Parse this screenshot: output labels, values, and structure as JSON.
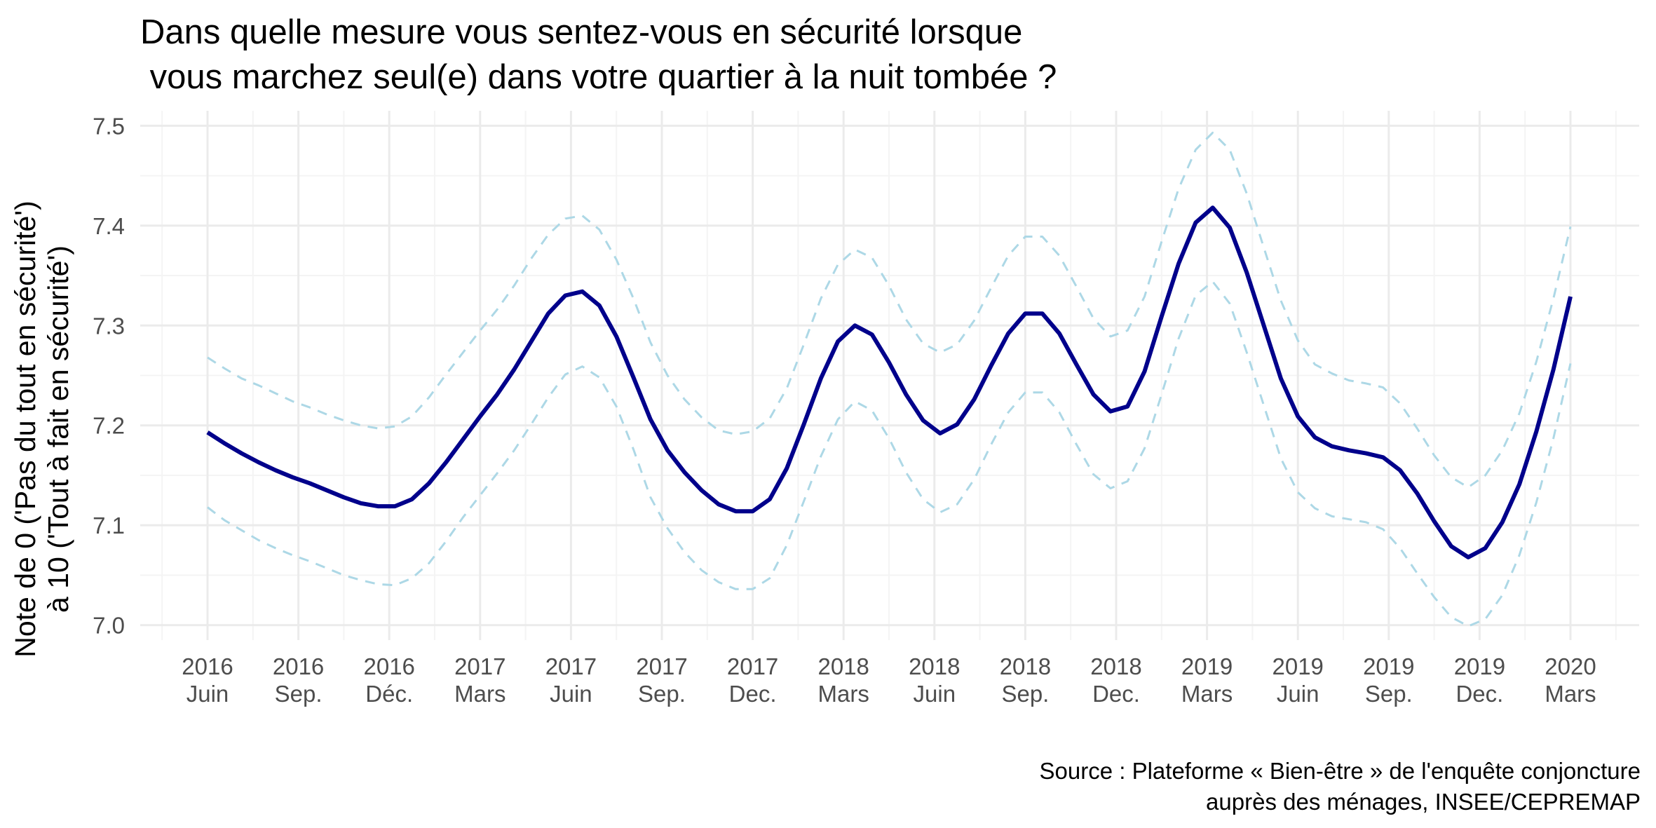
{
  "chart_data": {
    "type": "line",
    "title": "Dans quelle mesure vous sentez-vous en sécurité lorsque\n vous marchez seul(e) dans votre quartier à la nuit tombée ?",
    "ylabel": "Note de 0 ('Pas du tout en sécurité')\nà 10 ('Tout à fait en sécurité')",
    "xlabel": "",
    "caption": "Source : Plateforme « Bien-être » de l'enquête conjoncture\nauprès des ménages, INSEE/CEPREMAP",
    "ylim": [
      6.985,
      7.515
    ],
    "yticks": [
      7.0,
      7.1,
      7.2,
      7.3,
      7.4,
      7.5
    ],
    "ytick_labels": [
      "7.0",
      "7.1",
      "7.2",
      "7.3",
      "7.4",
      "7.5"
    ],
    "xticks": [
      {
        "year": "2016",
        "month": "Juin"
      },
      {
        "year": "2016",
        "month": "Sep."
      },
      {
        "year": "2016",
        "month": "Déc."
      },
      {
        "year": "2017",
        "month": "Mars"
      },
      {
        "year": "2017",
        "month": "Juin"
      },
      {
        "year": "2017",
        "month": "Sep."
      },
      {
        "year": "2017",
        "month": "Dec."
      },
      {
        "year": "2018",
        "month": "Mars"
      },
      {
        "year": "2018",
        "month": "Juin"
      },
      {
        "year": "2018",
        "month": "Sep."
      },
      {
        "year": "2018",
        "month": "Dec."
      },
      {
        "year": "2019",
        "month": "Mars"
      },
      {
        "year": "2019",
        "month": "Juin"
      },
      {
        "year": "2019",
        "month": "Sep."
      },
      {
        "year": "2019",
        "month": "Dec."
      },
      {
        "year": "2020",
        "month": "Mars"
      }
    ],
    "grid": true,
    "series": [
      {
        "color": "#00008b",
        "style": "solid",
        "values": [
          7.193,
          7.182,
          7.172,
          7.163,
          7.155,
          7.148,
          7.142,
          7.135,
          7.128,
          7.122,
          7.119,
          7.119,
          7.126,
          7.142,
          7.163,
          7.186,
          7.209,
          7.231,
          7.256,
          7.284,
          7.312,
          7.33,
          7.334,
          7.32,
          7.289,
          7.248,
          7.206,
          7.175,
          7.153,
          7.135,
          7.121,
          7.114,
          7.114,
          7.126,
          7.157,
          7.201,
          7.247,
          7.284,
          7.3,
          7.291,
          7.263,
          7.231,
          7.205,
          7.192,
          7.201,
          7.226,
          7.26,
          7.292,
          7.312,
          7.312,
          7.292,
          7.261,
          7.231,
          7.214,
          7.219,
          7.254,
          7.309,
          7.362,
          7.403,
          7.418,
          7.398,
          7.353,
          7.3,
          7.247,
          7.209,
          7.188,
          7.179,
          7.175,
          7.172,
          7.168,
          7.155,
          7.132,
          7.104,
          7.079,
          7.068,
          7.077,
          7.103,
          7.141,
          7.194,
          7.256,
          7.329
        ]
      },
      {
        "color": "#add8e6",
        "style": "dashed",
        "values": [
          7.268,
          7.257,
          7.247,
          7.24,
          7.232,
          7.224,
          7.218,
          7.211,
          7.205,
          7.2,
          7.197,
          7.199,
          7.209,
          7.228,
          7.251,
          7.273,
          7.295,
          7.316,
          7.34,
          7.367,
          7.391,
          7.407,
          7.41,
          7.396,
          7.366,
          7.327,
          7.283,
          7.25,
          7.226,
          7.208,
          7.195,
          7.191,
          7.194,
          7.207,
          7.237,
          7.281,
          7.327,
          7.361,
          7.376,
          7.368,
          7.34,
          7.306,
          7.282,
          7.273,
          7.281,
          7.305,
          7.338,
          7.37,
          7.389,
          7.389,
          7.37,
          7.339,
          7.307,
          7.289,
          7.295,
          7.329,
          7.384,
          7.437,
          7.476,
          7.493,
          7.476,
          7.432,
          7.378,
          7.325,
          7.285,
          7.261,
          7.252,
          7.245,
          7.242,
          7.238,
          7.222,
          7.197,
          7.17,
          7.148,
          7.138,
          7.15,
          7.175,
          7.212,
          7.264,
          7.327,
          7.399
        ]
      },
      {
        "color": "#add8e6",
        "style": "dashed",
        "values": [
          7.118,
          7.105,
          7.095,
          7.085,
          7.077,
          7.07,
          7.064,
          7.057,
          7.05,
          7.045,
          7.041,
          7.04,
          7.047,
          7.062,
          7.084,
          7.108,
          7.13,
          7.152,
          7.175,
          7.201,
          7.228,
          7.251,
          7.259,
          7.248,
          7.219,
          7.176,
          7.128,
          7.097,
          7.073,
          7.055,
          7.043,
          7.036,
          7.036,
          7.047,
          7.08,
          7.124,
          7.169,
          7.206,
          7.224,
          7.215,
          7.187,
          7.153,
          7.126,
          7.113,
          7.121,
          7.146,
          7.181,
          7.213,
          7.233,
          7.233,
          7.213,
          7.181,
          7.151,
          7.137,
          7.144,
          7.177,
          7.231,
          7.287,
          7.33,
          7.344,
          7.322,
          7.273,
          7.22,
          7.167,
          7.133,
          7.117,
          7.109,
          7.106,
          7.103,
          7.096,
          7.077,
          7.052,
          7.028,
          7.008,
          6.999,
          7.006,
          7.03,
          7.07,
          7.123,
          7.187,
          7.262
        ]
      }
    ]
  }
}
